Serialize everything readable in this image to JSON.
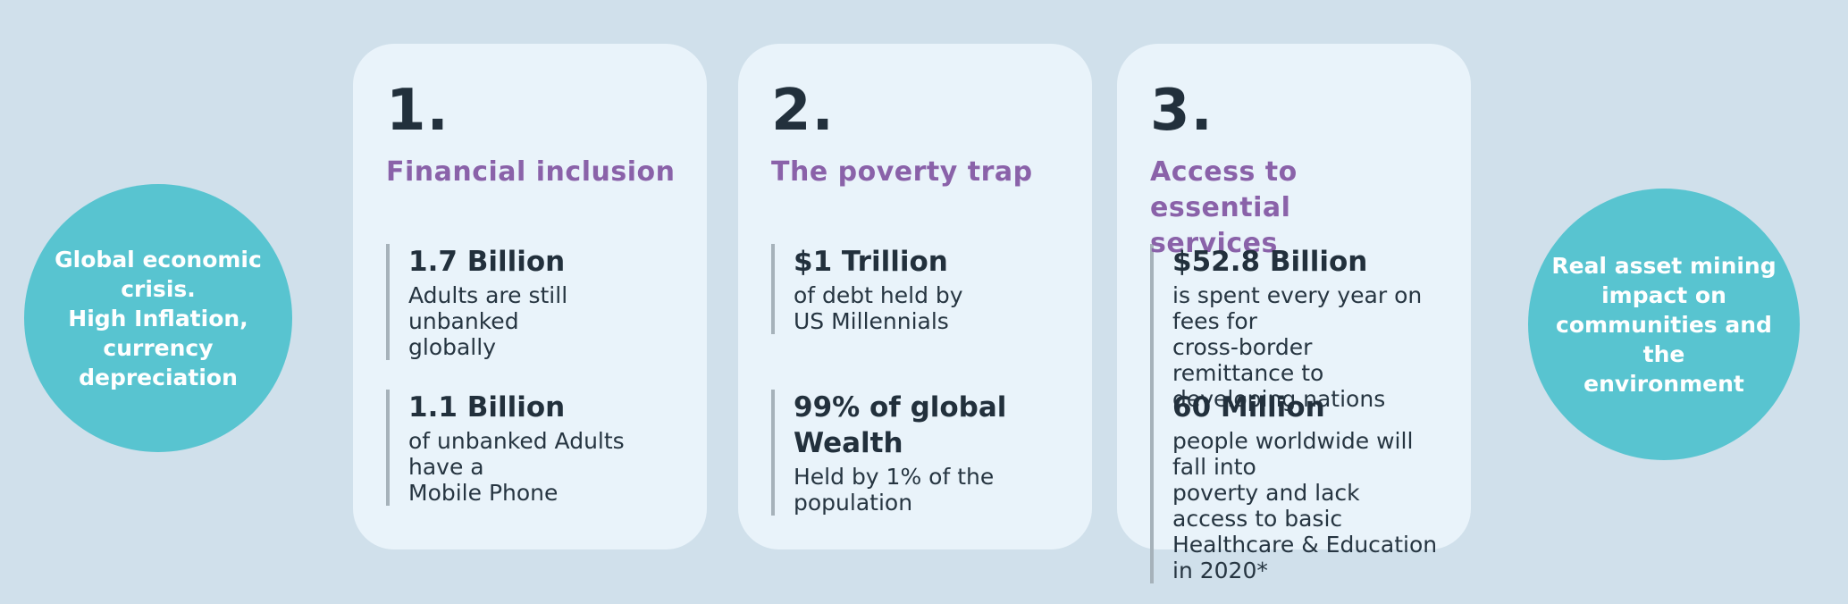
{
  "colors": {
    "background": "#D0E0EB",
    "card-background": "#E9F3FA",
    "bubble-teal": "#58C4D0",
    "heading-purple": "#8A62A9",
    "text-dark": "#22303C",
    "accent-bar-gray": "#A6B2BA"
  },
  "left_bubble": {
    "text": "Global economic\ncrisis.\nHigh Inflation,\ncurrency\ndepreciation"
  },
  "right_bubble": {
    "text": "Real asset  mining\nimpact on\ncommunities and the\nenvironment"
  },
  "cards": [
    {
      "number": "1.",
      "heading": "Financial inclusion",
      "stats": [
        {
          "value": "1.7 Billion",
          "description": "Adults are still unbanked\nglobally"
        },
        {
          "value": "1.1 Billion",
          "description": "of unbanked Adults have a\nMobile Phone"
        }
      ]
    },
    {
      "number": "2.",
      "heading": "The poverty trap",
      "stats": [
        {
          "value": "$1 Trillion",
          "description": "of debt held by\nUS Millennials"
        },
        {
          "value": "99% of global Wealth",
          "description": "Held by 1% of the\npopulation"
        }
      ]
    },
    {
      "number": "3.",
      "heading": "Access to essential\nservices",
      "stats": [
        {
          "value": "$52.8 Billion",
          "description": "is spent every year on fees for\ncross-border remittance to\ndeveloping nations"
        },
        {
          "value": "60 Million",
          "description": "people worldwide will fall into\npoverty and lack access to basic\nHealthcare & Education in 2020*"
        }
      ]
    }
  ]
}
